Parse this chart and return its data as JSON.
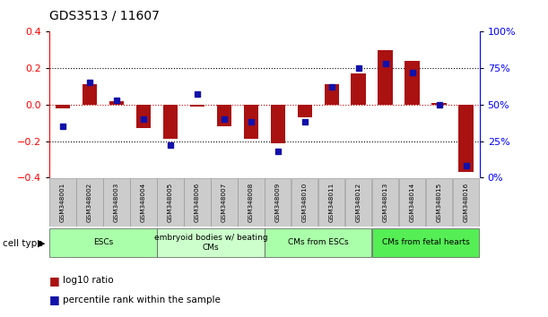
{
  "title": "GDS3513 / 11607",
  "samples": [
    "GSM348001",
    "GSM348002",
    "GSM348003",
    "GSM348004",
    "GSM348005",
    "GSM348006",
    "GSM348007",
    "GSM348008",
    "GSM348009",
    "GSM348010",
    "GSM348011",
    "GSM348012",
    "GSM348013",
    "GSM348014",
    "GSM348015",
    "GSM348016"
  ],
  "log10_ratio": [
    -0.02,
    0.11,
    0.02,
    -0.13,
    -0.19,
    -0.01,
    -0.12,
    -0.19,
    -0.21,
    -0.07,
    0.11,
    0.17,
    0.3,
    0.24,
    0.01,
    -0.37
  ],
  "percentile_rank": [
    35,
    65,
    53,
    40,
    22,
    57,
    40,
    38,
    18,
    38,
    62,
    75,
    78,
    72,
    50,
    8
  ],
  "bar_color": "#aa1111",
  "dot_color": "#1111aa",
  "ylim": [
    -0.4,
    0.4
  ],
  "y2lim": [
    0,
    100
  ],
  "yticks": [
    -0.4,
    -0.2,
    0,
    0.2,
    0.4
  ],
  "y2ticks": [
    0,
    25,
    50,
    75,
    100
  ],
  "y2ticklabels": [
    "0%",
    "25%",
    "50%",
    "75%",
    "100%"
  ],
  "cell_types": [
    {
      "label": "ESCs",
      "start": 0,
      "end": 3,
      "color": "#aaffaa"
    },
    {
      "label": "embryoid bodies w/ beating\nCMs",
      "start": 4,
      "end": 7,
      "color": "#ccffcc"
    },
    {
      "label": "CMs from ESCs",
      "start": 8,
      "end": 11,
      "color": "#aaffaa"
    },
    {
      "label": "CMs from fetal hearts",
      "start": 12,
      "end": 15,
      "color": "#55ee55"
    }
  ],
  "legend_items": [
    {
      "label": "log10 ratio",
      "color": "#aa1111"
    },
    {
      "label": "percentile rank within the sample",
      "color": "#1111aa"
    }
  ],
  "cell_type_label": "cell type",
  "background_color": "#ffffff",
  "dotted_line_color": "#000000",
  "zero_line_color": "#cc0000"
}
